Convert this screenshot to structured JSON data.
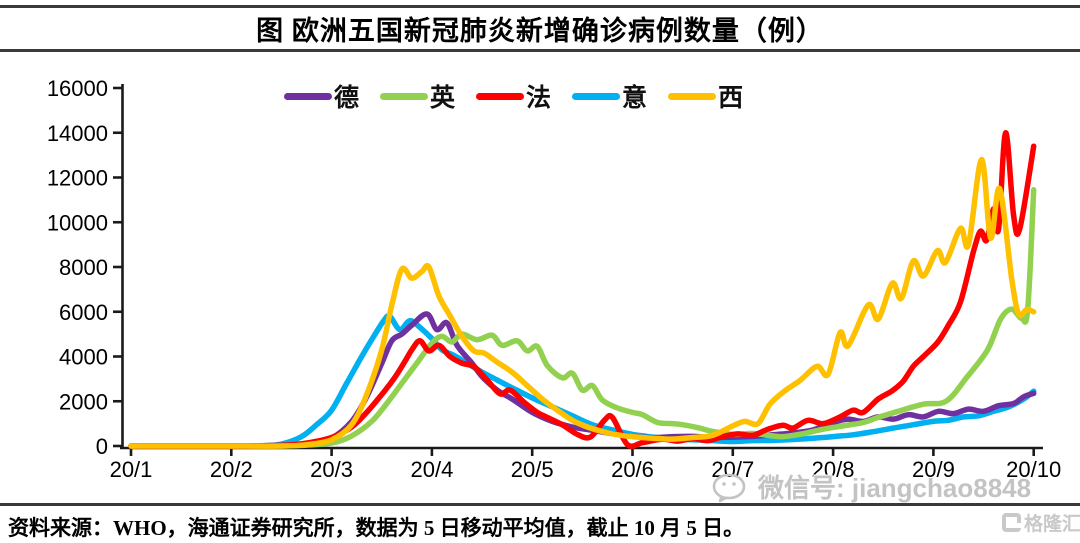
{
  "title": "图 欧洲五国新冠肺炎新增确诊病例数量（例）",
  "footer": {
    "source_text": "资料来源：WHO，海通证券研究所，数据为 5 日移动平均值，截止 10 月 5 日。"
  },
  "watermarks": {
    "wechat": {
      "label": "微信号: jiangchao8848"
    },
    "brand": {
      "label": "格隆汇"
    }
  },
  "chart_data": {
    "type": "line",
    "title": "图 欧洲五国新冠肺炎新增确诊病例数量（例）",
    "xlabel": "",
    "ylabel": "",
    "x_axis": {
      "tick_labels": [
        "20/1",
        "20/2",
        "20/3",
        "20/4",
        "20/5",
        "20/6",
        "20/7",
        "20/8",
        "20/9",
        "20/10"
      ],
      "tick_values": [
        1,
        2,
        3,
        4,
        5,
        6,
        7,
        8,
        9,
        10
      ],
      "range": [
        1,
        10
      ]
    },
    "y_axis": {
      "ticks": [
        0,
        2000,
        4000,
        6000,
        8000,
        10000,
        12000,
        14000,
        16000
      ],
      "range": [
        0,
        16000
      ]
    },
    "grid": false,
    "legend_position": "top-center",
    "axis_color": "#1a1a1a",
    "draw_order": [
      "italy",
      "germany",
      "uk",
      "france",
      "spain"
    ],
    "series": [
      {
        "id": "germany",
        "label": "德",
        "color": "#7030A0",
        "points": [
          [
            1,
            0
          ],
          [
            1.5,
            0
          ],
          [
            2,
            0
          ],
          [
            2.4,
            0
          ],
          [
            2.6,
            30
          ],
          [
            2.8,
            120
          ],
          [
            3.0,
            350
          ],
          [
            3.2,
            1100
          ],
          [
            3.35,
            2200
          ],
          [
            3.5,
            3700
          ],
          [
            3.6,
            4700
          ],
          [
            3.7,
            5000
          ],
          [
            3.8,
            5400
          ],
          [
            3.95,
            5900
          ],
          [
            4.05,
            5200
          ],
          [
            4.15,
            5500
          ],
          [
            4.25,
            4500
          ],
          [
            4.4,
            3700
          ],
          [
            4.5,
            3100
          ],
          [
            4.65,
            2500
          ],
          [
            4.8,
            2100
          ],
          [
            5.0,
            1500
          ],
          [
            5.2,
            1100
          ],
          [
            5.4,
            850
          ],
          [
            5.6,
            700
          ],
          [
            5.8,
            550
          ],
          [
            6.0,
            430
          ],
          [
            6.2,
            370
          ],
          [
            6.4,
            420
          ],
          [
            6.6,
            430
          ],
          [
            6.8,
            380
          ],
          [
            7.0,
            400
          ],
          [
            7.2,
            430
          ],
          [
            7.4,
            500
          ],
          [
            7.6,
            580
          ],
          [
            7.8,
            720
          ],
          [
            8.0,
            1050
          ],
          [
            8.15,
            1200
          ],
          [
            8.3,
            1100
          ],
          [
            8.45,
            1300
          ],
          [
            8.6,
            1200
          ],
          [
            8.75,
            1400
          ],
          [
            8.9,
            1300
          ],
          [
            9.05,
            1550
          ],
          [
            9.2,
            1450
          ],
          [
            9.35,
            1650
          ],
          [
            9.5,
            1550
          ],
          [
            9.65,
            1800
          ],
          [
            9.8,
            1900
          ],
          [
            9.9,
            2200
          ],
          [
            10,
            2350
          ]
        ]
      },
      {
        "id": "uk",
        "label": "英",
        "color": "#92D050",
        "points": [
          [
            1,
            0
          ],
          [
            1.5,
            0
          ],
          [
            2,
            0
          ],
          [
            2.5,
            0
          ],
          [
            2.75,
            40
          ],
          [
            3.0,
            130
          ],
          [
            3.2,
            450
          ],
          [
            3.4,
            1100
          ],
          [
            3.55,
            1900
          ],
          [
            3.7,
            2800
          ],
          [
            3.85,
            3700
          ],
          [
            4.0,
            4600
          ],
          [
            4.1,
            4900
          ],
          [
            4.2,
            4650
          ],
          [
            4.3,
            5000
          ],
          [
            4.45,
            4750
          ],
          [
            4.6,
            4950
          ],
          [
            4.7,
            4500
          ],
          [
            4.85,
            4700
          ],
          [
            4.95,
            4250
          ],
          [
            5.05,
            4450
          ],
          [
            5.15,
            3600
          ],
          [
            5.3,
            3050
          ],
          [
            5.4,
            3250
          ],
          [
            5.5,
            2500
          ],
          [
            5.6,
            2700
          ],
          [
            5.7,
            2050
          ],
          [
            5.85,
            1700
          ],
          [
            6.0,
            1500
          ],
          [
            6.1,
            1400
          ],
          [
            6.25,
            1050
          ],
          [
            6.4,
            1000
          ],
          [
            6.5,
            950
          ],
          [
            6.65,
            820
          ],
          [
            6.8,
            650
          ],
          [
            7.0,
            520
          ],
          [
            7.2,
            560
          ],
          [
            7.35,
            480
          ],
          [
            7.5,
            420
          ],
          [
            7.7,
            550
          ],
          [
            7.9,
            750
          ],
          [
            8.1,
            900
          ],
          [
            8.3,
            1050
          ],
          [
            8.45,
            1280
          ],
          [
            8.65,
            1550
          ],
          [
            8.9,
            1870
          ],
          [
            9.13,
            2010
          ],
          [
            9.34,
            3110
          ],
          [
            9.54,
            4300
          ],
          [
            9.67,
            5670
          ],
          [
            9.78,
            6120
          ],
          [
            9.88,
            5700
          ],
          [
            9.94,
            6100
          ],
          [
            10,
            11450
          ]
        ]
      },
      {
        "id": "france",
        "label": "法",
        "color": "#FE0000",
        "points": [
          [
            1,
            0
          ],
          [
            1.5,
            0
          ],
          [
            2,
            0
          ],
          [
            2.5,
            30
          ],
          [
            2.75,
            130
          ],
          [
            3.0,
            380
          ],
          [
            3.2,
            850
          ],
          [
            3.35,
            1500
          ],
          [
            3.5,
            2300
          ],
          [
            3.62,
            3000
          ],
          [
            3.72,
            3700
          ],
          [
            3.8,
            4300
          ],
          [
            3.88,
            4700
          ],
          [
            3.97,
            4250
          ],
          [
            4.07,
            4500
          ],
          [
            4.18,
            4000
          ],
          [
            4.3,
            3700
          ],
          [
            4.42,
            3550
          ],
          [
            4.55,
            2950
          ],
          [
            4.68,
            2330
          ],
          [
            4.78,
            2500
          ],
          [
            4.92,
            1950
          ],
          [
            5.05,
            1500
          ],
          [
            5.15,
            1280
          ],
          [
            5.3,
            950
          ],
          [
            5.45,
            520
          ],
          [
            5.58,
            400
          ],
          [
            5.72,
            1150
          ],
          [
            5.8,
            1280
          ],
          [
            5.95,
            60
          ],
          [
            6.1,
            150
          ],
          [
            6.3,
            300
          ],
          [
            6.45,
            220
          ],
          [
            6.6,
            330
          ],
          [
            6.75,
            240
          ],
          [
            6.9,
            420
          ],
          [
            7.05,
            540
          ],
          [
            7.2,
            480
          ],
          [
            7.35,
            750
          ],
          [
            7.5,
            930
          ],
          [
            7.6,
            800
          ],
          [
            7.75,
            1150
          ],
          [
            7.9,
            1000
          ],
          [
            8.07,
            1300
          ],
          [
            8.2,
            1600
          ],
          [
            8.3,
            1500
          ],
          [
            8.45,
            2100
          ],
          [
            8.59,
            2470
          ],
          [
            8.7,
            2900
          ],
          [
            8.8,
            3560
          ],
          [
            8.9,
            4000
          ],
          [
            9.04,
            4620
          ],
          [
            9.15,
            5400
          ],
          [
            9.27,
            6440
          ],
          [
            9.4,
            8700
          ],
          [
            9.47,
            9600
          ],
          [
            9.53,
            9200
          ],
          [
            9.6,
            10600
          ],
          [
            9.65,
            9700
          ],
          [
            9.72,
            14000
          ],
          [
            9.8,
            10300
          ],
          [
            9.86,
            9700
          ],
          [
            10,
            13400
          ]
        ]
      },
      {
        "id": "italy",
        "label": "意",
        "color": "#00B0F0",
        "points": [
          [
            1,
            0
          ],
          [
            1.5,
            0
          ],
          [
            2,
            0
          ],
          [
            2.3,
            10
          ],
          [
            2.5,
            90
          ],
          [
            2.7,
            420
          ],
          [
            2.85,
            950
          ],
          [
            3.0,
            1600
          ],
          [
            3.15,
            2800
          ],
          [
            3.3,
            4000
          ],
          [
            3.42,
            4900
          ],
          [
            3.52,
            5600
          ],
          [
            3.58,
            5800
          ],
          [
            3.68,
            5200
          ],
          [
            3.78,
            5600
          ],
          [
            3.88,
            5300
          ],
          [
            4.0,
            4800
          ],
          [
            4.1,
            4300
          ],
          [
            4.22,
            4050
          ],
          [
            4.35,
            3700
          ],
          [
            4.5,
            3300
          ],
          [
            4.65,
            2950
          ],
          [
            4.8,
            2600
          ],
          [
            5.0,
            2150
          ],
          [
            5.2,
            1750
          ],
          [
            5.4,
            1350
          ],
          [
            5.6,
            950
          ],
          [
            5.8,
            720
          ],
          [
            6.0,
            520
          ],
          [
            6.2,
            400
          ],
          [
            6.4,
            320
          ],
          [
            6.6,
            280
          ],
          [
            6.8,
            240
          ],
          [
            7.0,
            200
          ],
          [
            7.2,
            240
          ],
          [
            7.4,
            250
          ],
          [
            7.6,
            290
          ],
          [
            7.8,
            350
          ],
          [
            8.0,
            420
          ],
          [
            8.2,
            500
          ],
          [
            8.4,
            640
          ],
          [
            8.6,
            800
          ],
          [
            8.8,
            950
          ],
          [
            9.0,
            1100
          ],
          [
            9.15,
            1150
          ],
          [
            9.3,
            1300
          ],
          [
            9.45,
            1350
          ],
          [
            9.6,
            1550
          ],
          [
            9.75,
            1750
          ],
          [
            9.9,
            2100
          ],
          [
            10,
            2450
          ]
        ]
      },
      {
        "id": "spain",
        "label": "西",
        "color": "#FFC000",
        "points": [
          [
            1,
            0
          ],
          [
            1.5,
            0
          ],
          [
            2,
            0
          ],
          [
            2.5,
            0
          ],
          [
            2.75,
            60
          ],
          [
            3.0,
            280
          ],
          [
            3.2,
            950
          ],
          [
            3.35,
            2300
          ],
          [
            3.5,
            4300
          ],
          [
            3.6,
            6300
          ],
          [
            3.7,
            7900
          ],
          [
            3.8,
            7500
          ],
          [
            3.9,
            7800
          ],
          [
            3.97,
            8000
          ],
          [
            4.07,
            6700
          ],
          [
            4.17,
            5900
          ],
          [
            4.3,
            4900
          ],
          [
            4.42,
            4250
          ],
          [
            4.52,
            4150
          ],
          [
            4.65,
            3750
          ],
          [
            4.8,
            3300
          ],
          [
            4.95,
            2700
          ],
          [
            5.1,
            2100
          ],
          [
            5.25,
            1600
          ],
          [
            5.4,
            1150
          ],
          [
            5.55,
            850
          ],
          [
            5.7,
            650
          ],
          [
            5.85,
            500
          ],
          [
            6.0,
            420
          ],
          [
            6.2,
            350
          ],
          [
            6.4,
            310
          ],
          [
            6.6,
            380
          ],
          [
            6.8,
            480
          ],
          [
            7.0,
            900
          ],
          [
            7.12,
            1100
          ],
          [
            7.25,
            1000
          ],
          [
            7.37,
            1870
          ],
          [
            7.52,
            2470
          ],
          [
            7.67,
            2930
          ],
          [
            7.84,
            3560
          ],
          [
            7.95,
            3200
          ],
          [
            8.07,
            5070
          ],
          [
            8.15,
            4480
          ],
          [
            8.35,
            6300
          ],
          [
            8.45,
            5670
          ],
          [
            8.59,
            7270
          ],
          [
            8.68,
            6600
          ],
          [
            8.8,
            8270
          ],
          [
            8.9,
            7600
          ],
          [
            9.04,
            8730
          ],
          [
            9.12,
            8200
          ],
          [
            9.27,
            9730
          ],
          [
            9.35,
            9000
          ],
          [
            9.48,
            12800
          ],
          [
            9.57,
            9300
          ],
          [
            9.66,
            11500
          ],
          [
            9.78,
            7500
          ],
          [
            9.85,
            5900
          ],
          [
            9.93,
            6100
          ],
          [
            10,
            6000
          ]
        ]
      }
    ]
  }
}
